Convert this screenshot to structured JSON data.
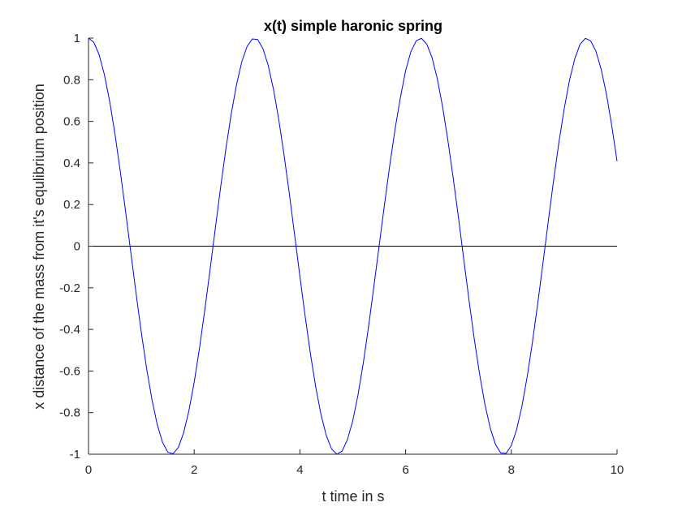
{
  "chart_data": {
    "type": "line",
    "title": "x(t) simple haronic spring",
    "xlabel": "t time in s",
    "ylabel": "x distance of the mass from it's equlibrium position",
    "xlim": [
      0,
      10
    ],
    "ylim": [
      -1,
      1
    ],
    "xticks": [
      0,
      2,
      4,
      6,
      8,
      10
    ],
    "xtick_labels": [
      "0",
      "2",
      "4",
      "6",
      "8",
      "10"
    ],
    "yticks": [
      -1,
      -0.8,
      -0.6,
      -0.4,
      -0.2,
      0,
      0.2,
      0.4,
      0.6,
      0.8,
      1
    ],
    "ytick_labels": [
      "-1",
      "-0.8",
      "-0.6",
      "-0.4",
      "-0.2",
      "0",
      "0.2",
      "0.4",
      "0.6",
      "0.8",
      "1"
    ],
    "grid": false,
    "series": [
      {
        "color": "#0000ff",
        "x": [
          0,
          0.1,
          0.2,
          0.3,
          0.4,
          0.5,
          0.6,
          0.7,
          0.8,
          0.9,
          1.0,
          1.1,
          1.2,
          1.3,
          1.4,
          1.5,
          1.6,
          1.7,
          1.8,
          1.9,
          2.0,
          2.1,
          2.2,
          2.3,
          2.4,
          2.5,
          2.6,
          2.7,
          2.8,
          2.9,
          3.0,
          3.1,
          3.2,
          3.3,
          3.4,
          3.5,
          3.6,
          3.7,
          3.8,
          3.9,
          4.0,
          4.1,
          4.2,
          4.3,
          4.4,
          4.5,
          4.6,
          4.7,
          4.8,
          4.9,
          5.0,
          5.1,
          5.2,
          5.3,
          5.4,
          5.5,
          5.6,
          5.7,
          5.8,
          5.9,
          6.0,
          6.1,
          6.2,
          6.3,
          6.4,
          6.5,
          6.6,
          6.7,
          6.8,
          6.9,
          7.0,
          7.1,
          7.2,
          7.3,
          7.4,
          7.5,
          7.6,
          7.7,
          7.8,
          7.9,
          8.0,
          8.1,
          8.2,
          8.3,
          8.4,
          8.5,
          8.6,
          8.7,
          8.8,
          8.9,
          9.0,
          9.1,
          9.2,
          9.3,
          9.4,
          9.5,
          9.6,
          9.7,
          9.8,
          9.9,
          10.0
        ],
        "y": [
          1.0,
          0.98,
          0.921,
          0.825,
          0.697,
          0.54,
          0.362,
          0.17,
          -0.029,
          -0.227,
          -0.416,
          -0.589,
          -0.737,
          -0.857,
          -0.942,
          -0.99,
          -0.998,
          -0.967,
          -0.897,
          -0.79,
          -0.654,
          -0.49,
          -0.307,
          -0.113,
          0.087,
          0.284,
          0.469,
          0.635,
          0.776,
          0.886,
          0.96,
          0.996,
          0.993,
          0.95,
          0.869,
          0.754,
          0.608,
          0.438,
          0.251,
          0.054,
          -0.146,
          -0.339,
          -0.519,
          -0.678,
          -0.811,
          -0.911,
          -0.975,
          -1.0,
          -0.984,
          -0.929,
          -0.839,
          -0.714,
          -0.56,
          -0.384,
          -0.192,
          0.004,
          0.2,
          0.389,
          0.562,
          0.713,
          0.844,
          0.935,
          0.987,
          0.999,
          0.971,
          0.906,
          0.804,
          0.669,
          0.508,
          0.327,
          0.137,
          -0.064,
          -0.261,
          -0.449,
          -0.616,
          -0.76,
          -0.874,
          -0.953,
          -0.994,
          -0.996,
          -0.958,
          -0.881,
          -0.77,
          -0.627,
          -0.46,
          -0.274,
          -0.078,
          0.122,
          0.317,
          0.499,
          0.66,
          0.797,
          0.901,
          0.97,
          0.999,
          0.987,
          0.937,
          0.85,
          0.73,
          0.579,
          0.408
        ]
      }
    ]
  }
}
